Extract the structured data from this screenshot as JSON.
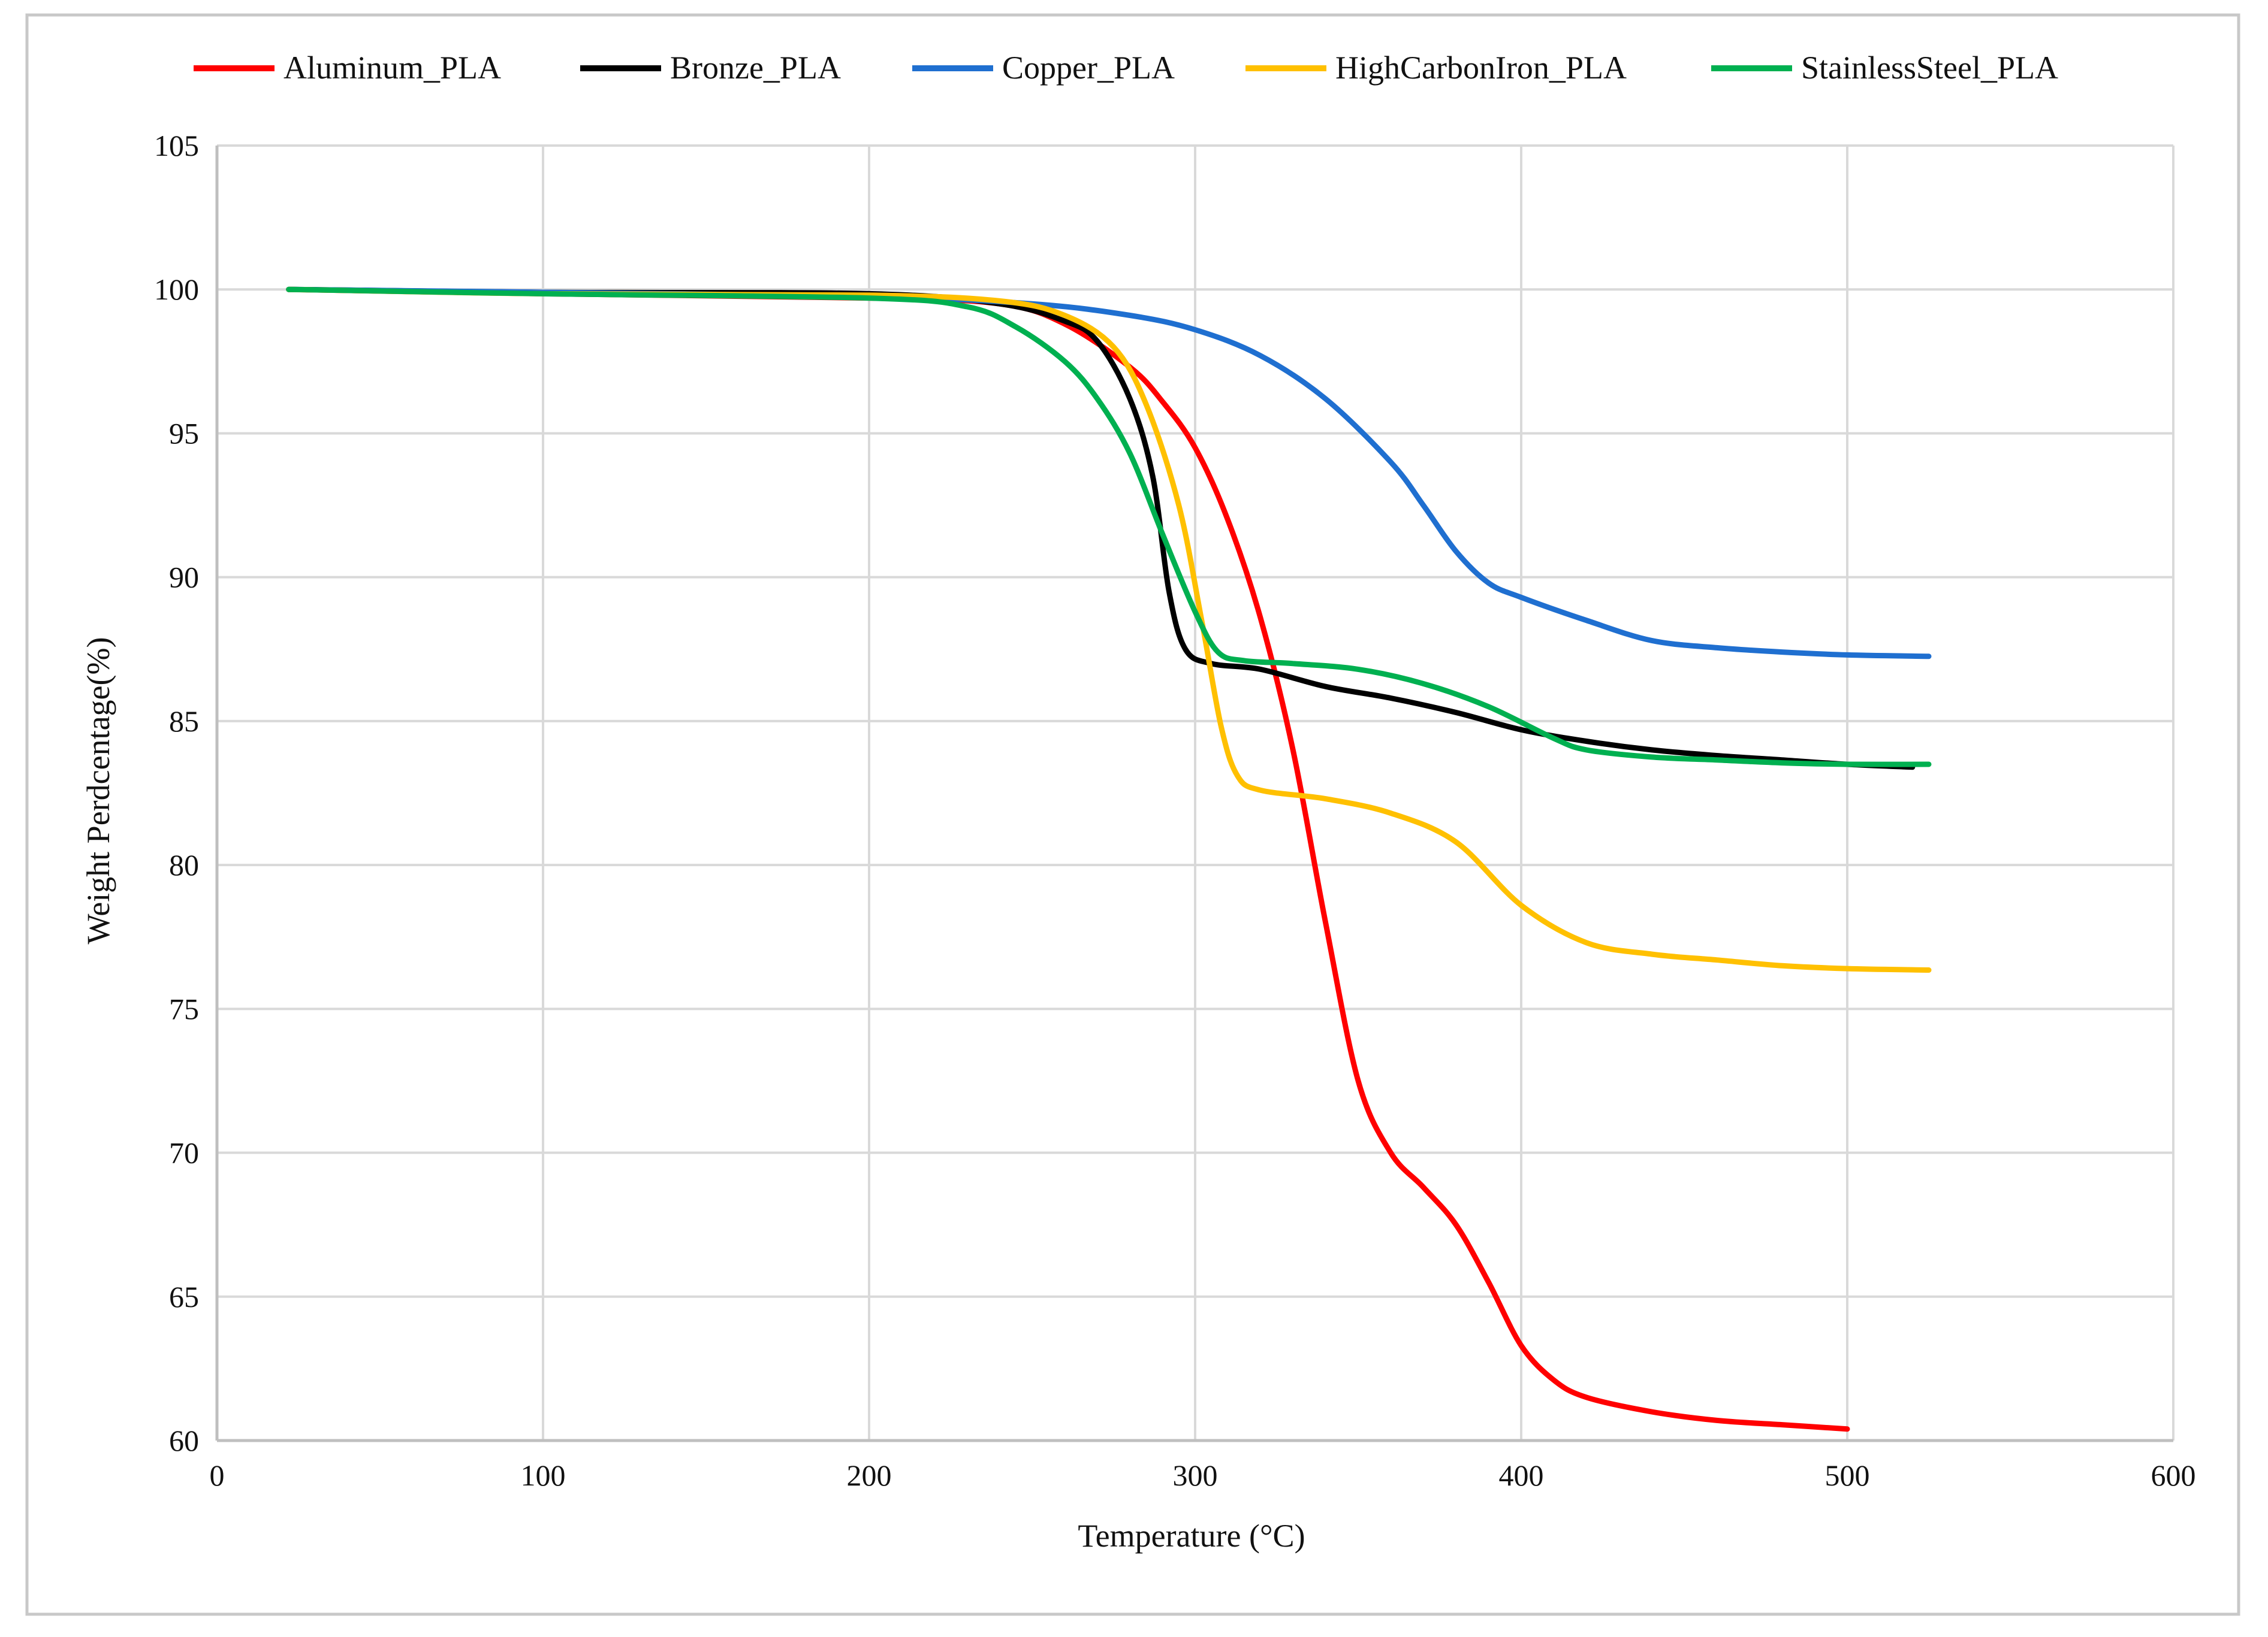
{
  "chart_data": {
    "type": "line",
    "title": "",
    "xlabel": "Temperature (°C)",
    "ylabel": "Weight Perdcentage(%)",
    "xlim": [
      0,
      600
    ],
    "ylim": [
      60,
      105
    ],
    "xticks": [
      0,
      100,
      200,
      300,
      400,
      500,
      600
    ],
    "yticks": [
      60,
      65,
      70,
      75,
      80,
      85,
      90,
      95,
      100,
      105
    ],
    "grid": true,
    "legend_position": "top",
    "series": [
      {
        "name": "Aluminum_PLA",
        "color": "#ff0000",
        "points": [
          [
            22,
            100
          ],
          [
            100,
            99.85
          ],
          [
            200,
            99.7
          ],
          [
            240,
            99.5
          ],
          [
            260,
            98.8
          ],
          [
            280,
            97.3
          ],
          [
            290,
            96.1
          ],
          [
            300,
            94.5
          ],
          [
            310,
            92.0
          ],
          [
            320,
            88.6
          ],
          [
            330,
            84.0
          ],
          [
            340,
            78.0
          ],
          [
            350,
            72.5
          ],
          [
            360,
            70.0
          ],
          [
            370,
            68.8
          ],
          [
            380,
            67.5
          ],
          [
            390,
            65.5
          ],
          [
            400,
            63.3
          ],
          [
            410,
            62.1
          ],
          [
            420,
            61.5
          ],
          [
            440,
            61.0
          ],
          [
            460,
            60.7
          ],
          [
            480,
            60.55
          ],
          [
            500,
            60.4
          ]
        ]
      },
      {
        "name": "Bronze_PLA",
        "color": "#000000",
        "points": [
          [
            22,
            100
          ],
          [
            100,
            99.9
          ],
          [
            200,
            99.85
          ],
          [
            240,
            99.5
          ],
          [
            260,
            98.9
          ],
          [
            270,
            98.2
          ],
          [
            280,
            96.2
          ],
          [
            287,
            93.5
          ],
          [
            292,
            89.5
          ],
          [
            297,
            87.5
          ],
          [
            305,
            87.0
          ],
          [
            320,
            86.8
          ],
          [
            340,
            86.2
          ],
          [
            360,
            85.8
          ],
          [
            380,
            85.3
          ],
          [
            400,
            84.7
          ],
          [
            420,
            84.3
          ],
          [
            440,
            84.0
          ],
          [
            460,
            83.8
          ],
          [
            480,
            83.65
          ],
          [
            500,
            83.5
          ],
          [
            520,
            83.4
          ]
        ]
      },
      {
        "name": "Copper_PLA",
        "color": "#1f6fd0",
        "points": [
          [
            22,
            100
          ],
          [
            100,
            99.9
          ],
          [
            200,
            99.75
          ],
          [
            250,
            99.5
          ],
          [
            280,
            99.1
          ],
          [
            300,
            98.6
          ],
          [
            320,
            97.7
          ],
          [
            340,
            96.2
          ],
          [
            360,
            94.0
          ],
          [
            370,
            92.5
          ],
          [
            380,
            90.9
          ],
          [
            390,
            89.8
          ],
          [
            400,
            89.3
          ],
          [
            420,
            88.5
          ],
          [
            440,
            87.8
          ],
          [
            460,
            87.55
          ],
          [
            480,
            87.4
          ],
          [
            500,
            87.3
          ],
          [
            525,
            87.25
          ]
        ]
      },
      {
        "name": "HighCarbonIron_PLA",
        "color": "#ffc000",
        "points": [
          [
            22,
            100
          ],
          [
            100,
            99.85
          ],
          [
            200,
            99.8
          ],
          [
            240,
            99.6
          ],
          [
            260,
            99.1
          ],
          [
            275,
            98.0
          ],
          [
            285,
            96.0
          ],
          [
            295,
            92.5
          ],
          [
            302,
            88.5
          ],
          [
            308,
            84.8
          ],
          [
            313,
            83.1
          ],
          [
            320,
            82.6
          ],
          [
            340,
            82.3
          ],
          [
            360,
            81.8
          ],
          [
            380,
            80.8
          ],
          [
            400,
            78.6
          ],
          [
            420,
            77.3
          ],
          [
            440,
            76.9
          ],
          [
            460,
            76.7
          ],
          [
            480,
            76.5
          ],
          [
            500,
            76.4
          ],
          [
            525,
            76.35
          ]
        ]
      },
      {
        "name": "StainlessSteel_PLA",
        "color": "#00b050",
        "points": [
          [
            22,
            100
          ],
          [
            100,
            99.85
          ],
          [
            200,
            99.7
          ],
          [
            230,
            99.4
          ],
          [
            245,
            98.7
          ],
          [
            260,
            97.5
          ],
          [
            270,
            96.2
          ],
          [
            280,
            94.3
          ],
          [
            290,
            91.5
          ],
          [
            300,
            88.8
          ],
          [
            307,
            87.4
          ],
          [
            315,
            87.1
          ],
          [
            330,
            87.0
          ],
          [
            350,
            86.8
          ],
          [
            370,
            86.3
          ],
          [
            390,
            85.5
          ],
          [
            410,
            84.4
          ],
          [
            420,
            84.0
          ],
          [
            440,
            83.75
          ],
          [
            460,
            83.65
          ],
          [
            480,
            83.55
          ],
          [
            500,
            83.5
          ],
          [
            525,
            83.5
          ]
        ]
      }
    ]
  }
}
